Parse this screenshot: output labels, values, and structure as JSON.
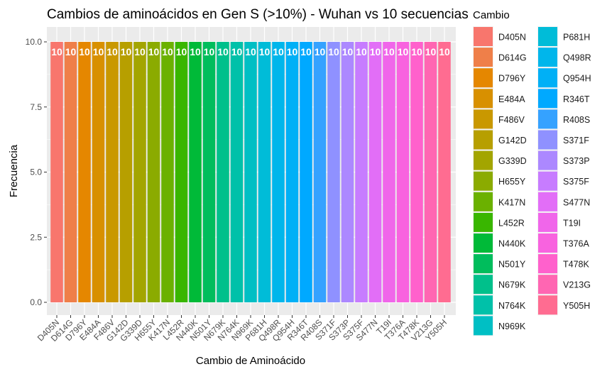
{
  "chart_data": {
    "type": "bar",
    "title": "Cambios de aminoácidos en Gen S (>10%) - Wuhan vs 10 secuencias",
    "xlabel": "Cambio de Aminoácido",
    "ylabel": "Frecuencia",
    "ylim": [
      0,
      10
    ],
    "yticks": [
      0.0,
      2.5,
      5.0,
      7.5,
      10.0
    ],
    "ytick_labels": [
      "0.0",
      "2.5",
      "5.0",
      "7.5",
      "10.0"
    ],
    "grid": true,
    "legend": {
      "title": "Cambio",
      "placement": "right",
      "columns": 2
    },
    "categories": [
      "D405N",
      "D614G",
      "D796Y",
      "E484A",
      "F486V",
      "G142D",
      "G339D",
      "H655Y",
      "K417N",
      "L452R",
      "N440K",
      "N501Y",
      "N679K",
      "N764K",
      "N969K",
      "P681H",
      "Q498R",
      "Q954H",
      "R346T",
      "R408S",
      "S371F",
      "S373P",
      "S375F",
      "S477N",
      "T19I",
      "T376A",
      "T478K",
      "V213G",
      "Y505H"
    ],
    "values": [
      10,
      10,
      10,
      10,
      10,
      10,
      10,
      10,
      10,
      10,
      10,
      10,
      10,
      10,
      10,
      10,
      10,
      10,
      10,
      10,
      10,
      10,
      10,
      10,
      10,
      10,
      10,
      10,
      10
    ],
    "data_labels": [
      "10",
      "10",
      "10",
      "10",
      "10",
      "10",
      "10",
      "10",
      "10",
      "10",
      "10",
      "10",
      "10",
      "10",
      "10",
      "10",
      "10",
      "10",
      "10",
      "10",
      "10",
      "10",
      "10",
      "10",
      "10",
      "10",
      "10",
      "10",
      "10"
    ],
    "colors": [
      "#F8766D",
      "#EF7F49",
      "#E58700",
      "#D89000",
      "#C99800",
      "#B79F00",
      "#A3A500",
      "#8BAB00",
      "#6BB100",
      "#39B600",
      "#00BA38",
      "#00BD5C",
      "#00C08B",
      "#00C1A9",
      "#00BFC4",
      "#00BCD8",
      "#00B6EB",
      "#00B0F6",
      "#00A9FF",
      "#35A2FF",
      "#8F91FF",
      "#AC88FF",
      "#C77CFF",
      "#E26EF7",
      "#F066EA",
      "#F863DF",
      "#FF61CC",
      "#FF66B2",
      "#FF6C91"
    ]
  }
}
